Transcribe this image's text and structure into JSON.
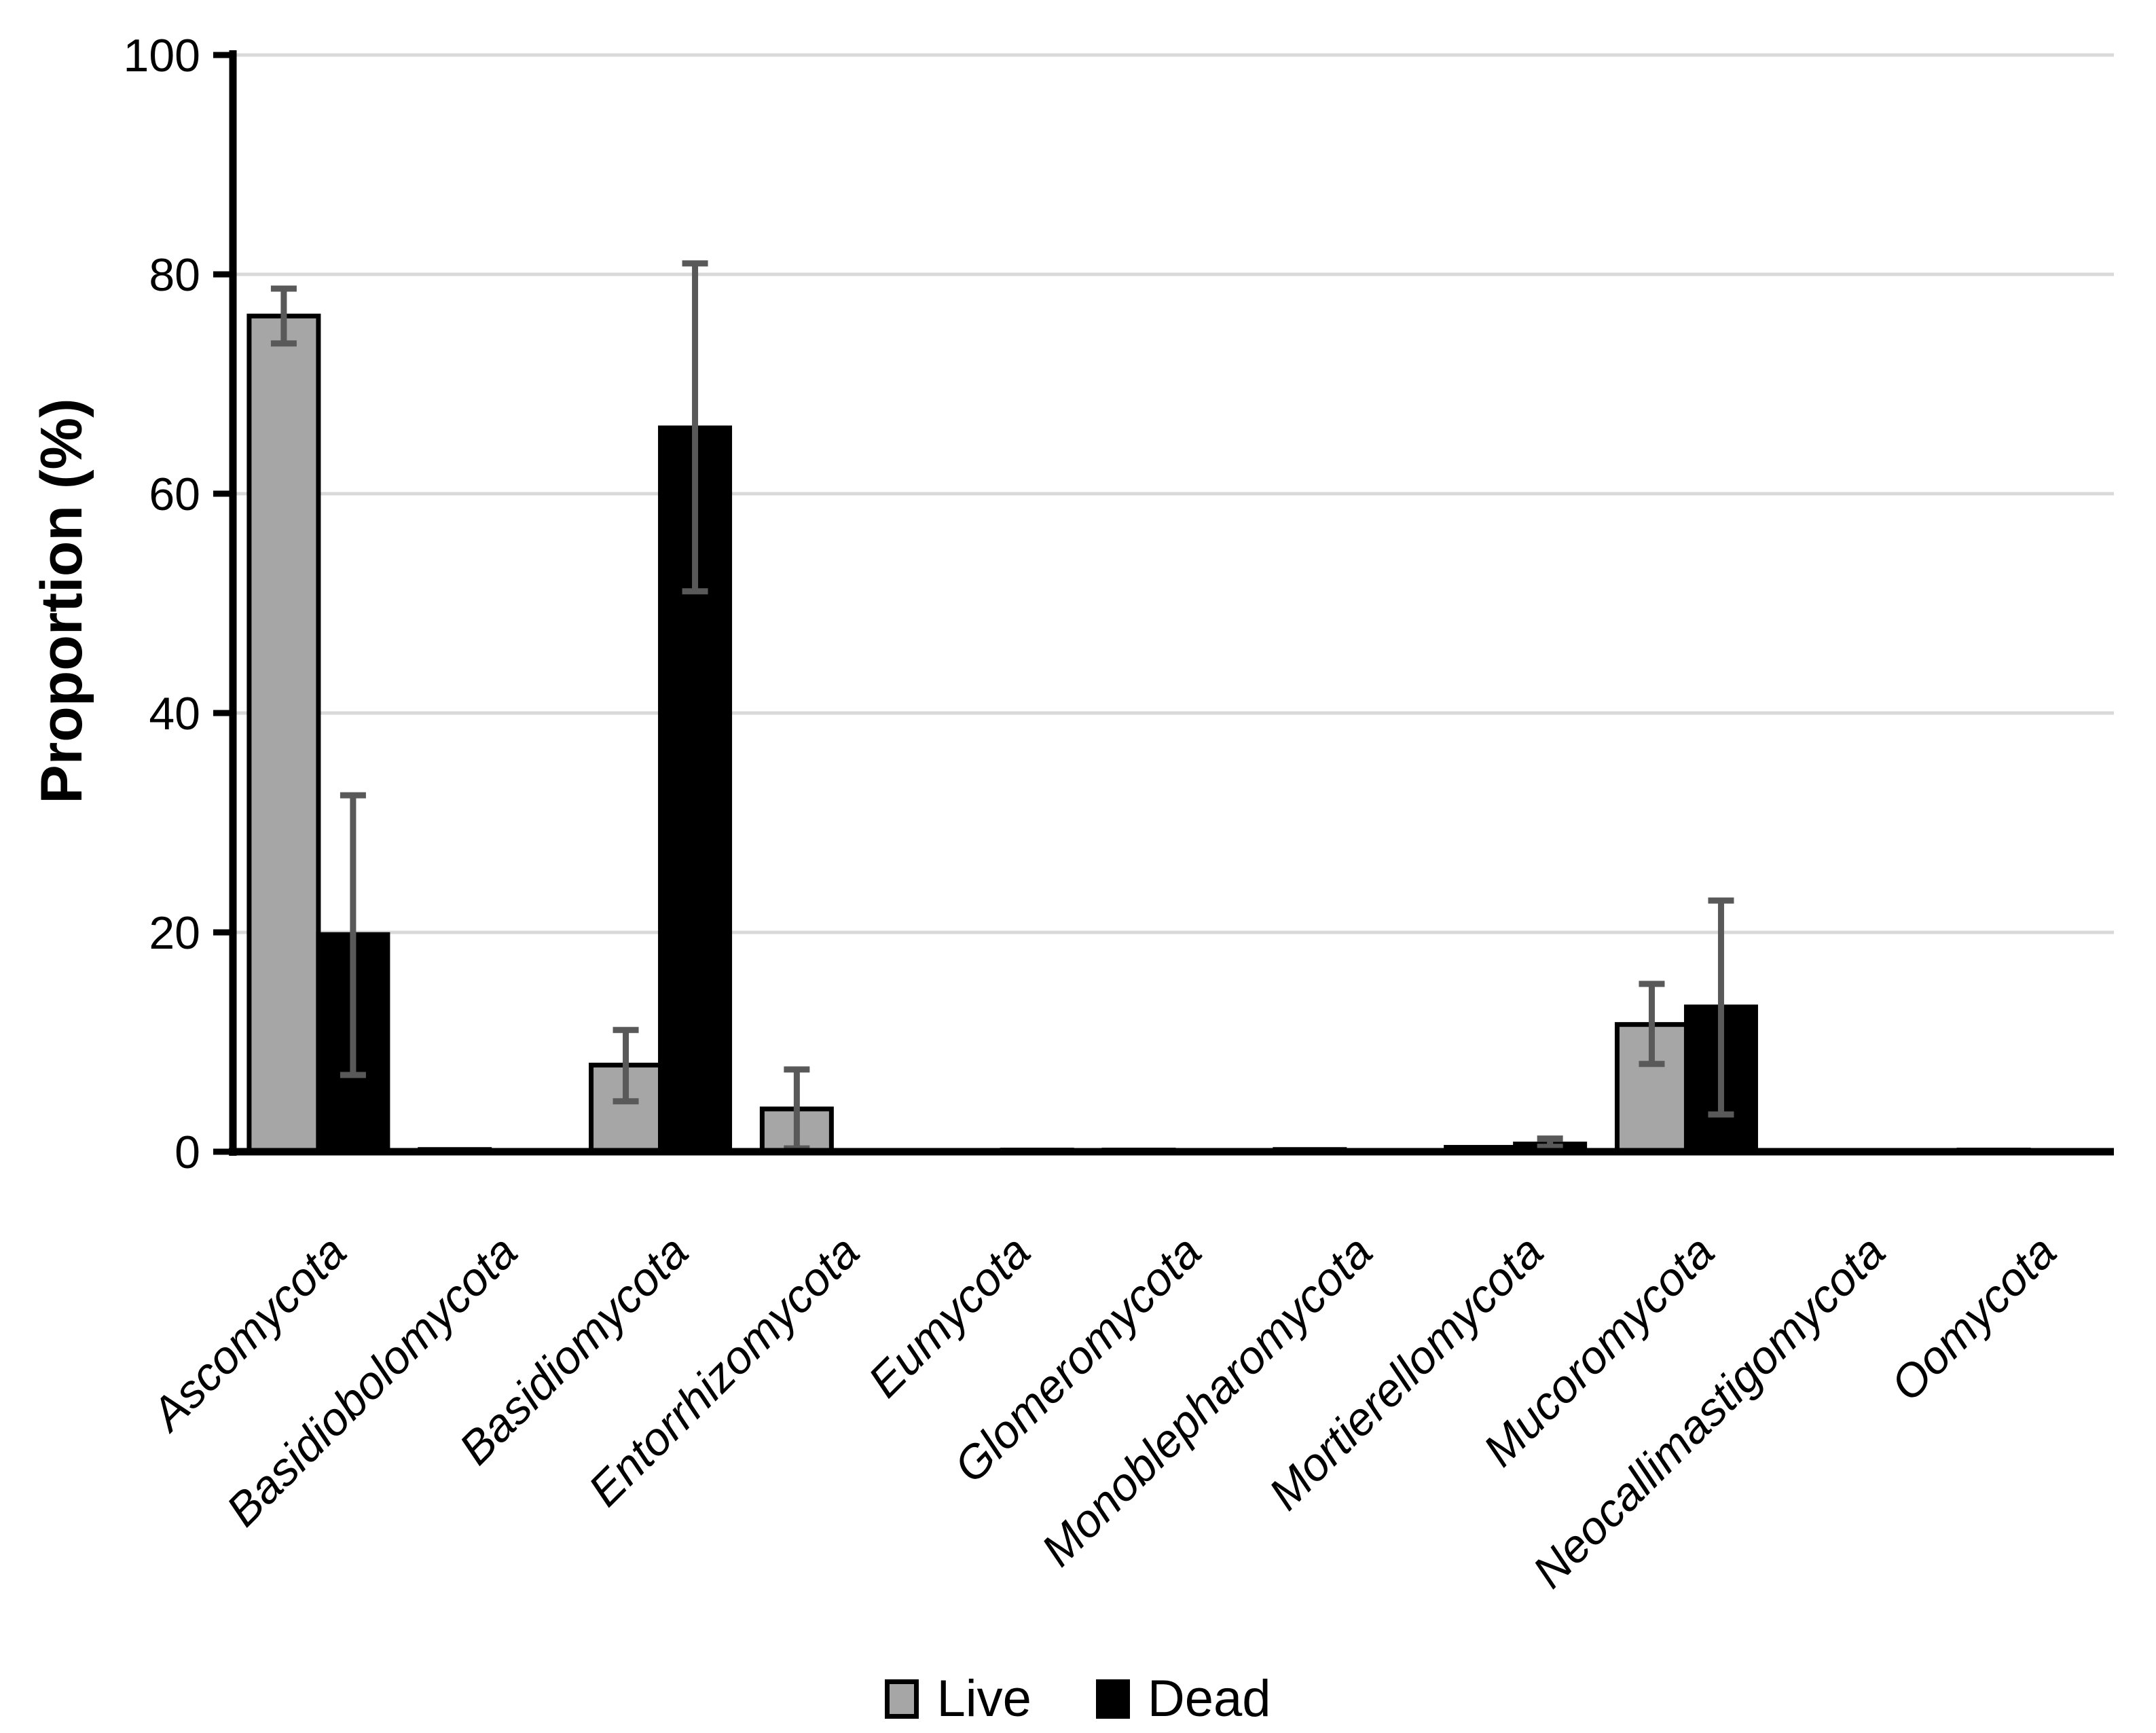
{
  "chart_data": {
    "type": "bar",
    "title": "",
    "xlabel": "",
    "ylabel": "Proportion (%)",
    "ylim": [
      0,
      100
    ],
    "yticks": [
      0,
      20,
      40,
      60,
      80,
      100
    ],
    "grid": "horizontal",
    "gridline_color": "#D9D9D9",
    "axis_color": "#000000",
    "error_bar_color": "#595959",
    "legend_position": "bottom",
    "category_label_rotation_deg": 45,
    "categories": [
      "Ascomycota",
      "Basidiobolomycota",
      "Basidiomycota",
      "Entorrhizomycota",
      "Eumycota",
      "Glomeromycota",
      "Monoblepharomycota",
      "Mortierellomycota",
      "Mucoromycota",
      "Neocallimastigomycota",
      "Oomycota"
    ],
    "series": [
      {
        "name": "Live",
        "color": "#A6A6A6",
        "values": [
          76.2,
          0.2,
          7.9,
          3.9,
          0,
          0.15,
          0.2,
          0.4,
          11.6,
          0,
          0.15
        ],
        "error_low": [
          73.7,
          null,
          4.6,
          0.3,
          null,
          null,
          null,
          null,
          8.0,
          null,
          null
        ],
        "error_high": [
          78.7,
          null,
          11.1,
          7.5,
          null,
          null,
          null,
          null,
          15.3,
          null,
          null
        ]
      },
      {
        "name": "Dead",
        "color": "#000000",
        "values": [
          19.8,
          0,
          66.0,
          0,
          0.15,
          0,
          0,
          0.7,
          13.2,
          0,
          0
        ],
        "error_low": [
          7.0,
          null,
          51.1,
          null,
          null,
          null,
          null,
          0.45,
          3.4,
          null,
          null
        ],
        "error_high": [
          32.5,
          null,
          81.0,
          null,
          null,
          null,
          null,
          1.2,
          22.9,
          null,
          null
        ]
      }
    ]
  }
}
